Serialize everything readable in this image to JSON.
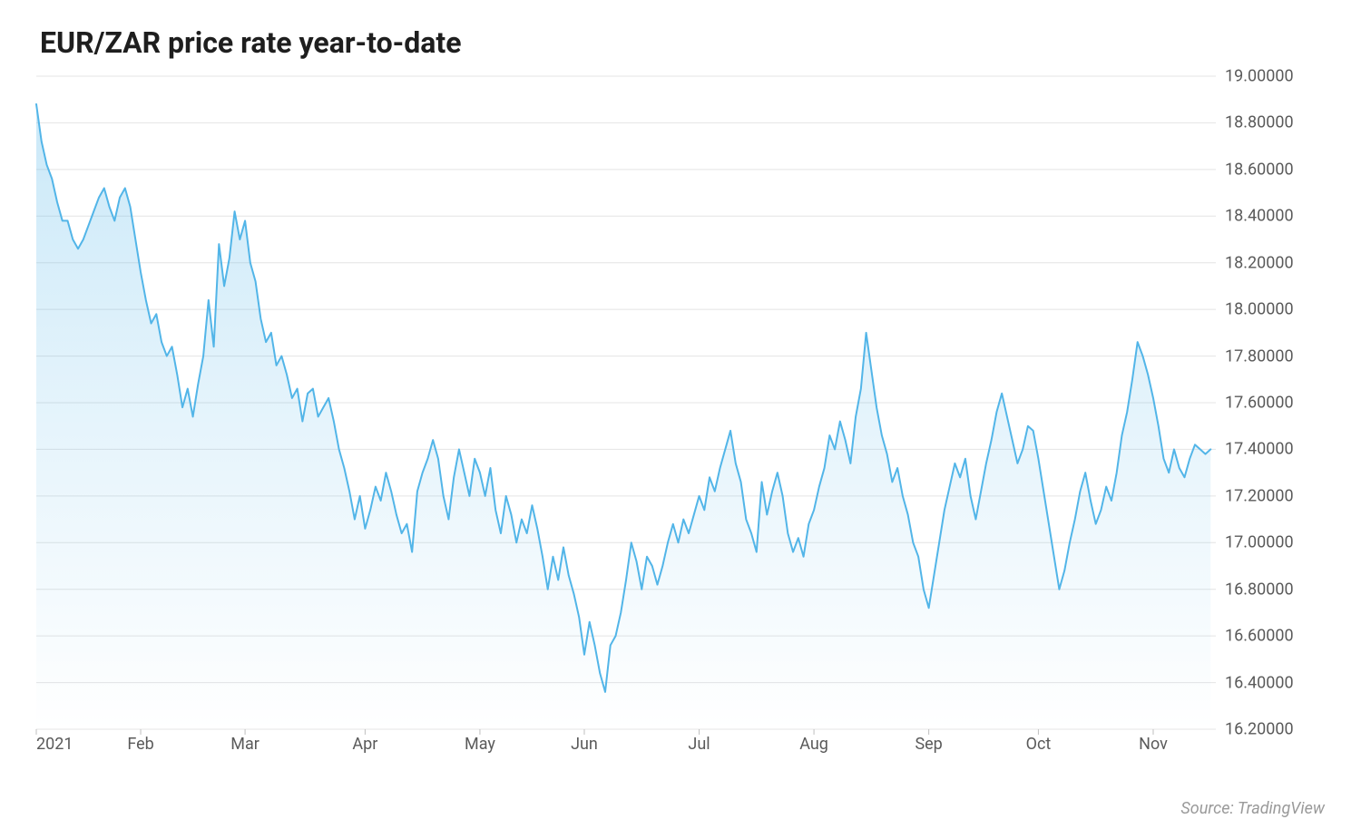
{
  "chart": {
    "type": "area-line",
    "title": "EUR/ZAR price rate year-to-date",
    "title_fontsize": 32,
    "title_color": "#1e1e1e",
    "background_color": "#ffffff",
    "grid_color": "#e4e4e4",
    "line_color": "#52b5e8",
    "line_width": 2,
    "area_gradient_top": "rgba(82,181,232,0.30)",
    "area_gradient_bottom": "rgba(82,181,232,0.0)",
    "axis_label_color": "#5a5a5a",
    "axis_label_fontsize": 18,
    "tick_color": "#bfbfbf",
    "ylim": [
      16.2,
      19.0
    ],
    "ytick_step": 0.2,
    "y_ticks": [
      19.0,
      18.8,
      18.6,
      18.4,
      18.2,
      18.0,
      17.8,
      17.6,
      17.4,
      17.2,
      17.0,
      16.8,
      16.6,
      16.4,
      16.2
    ],
    "y_tick_labels": [
      "19.00000",
      "18.80000",
      "18.60000",
      "18.40000",
      "18.20000",
      "18.00000",
      "17.80000",
      "17.60000",
      "17.40000",
      "17.20000",
      "17.00000",
      "16.80000",
      "16.60000",
      "16.40000",
      "16.20000"
    ],
    "xlim": [
      0,
      226
    ],
    "x_ticks": [
      0,
      20,
      40,
      63,
      85,
      105,
      127,
      149,
      171,
      192,
      214
    ],
    "x_tick_labels": [
      "2021",
      "Feb",
      "Mar",
      "Apr",
      "May",
      "Jun",
      "Jul",
      "Aug",
      "Sep",
      "Oct",
      "Nov"
    ],
    "source_text": "Source: TradingView",
    "source_color": "#9a9a9a",
    "series": {
      "name": "EUR/ZAR",
      "values": [
        18.88,
        18.72,
        18.62,
        18.56,
        18.46,
        18.38,
        18.38,
        18.3,
        18.26,
        18.3,
        18.36,
        18.42,
        18.48,
        18.52,
        18.44,
        18.38,
        18.48,
        18.52,
        18.44,
        18.3,
        18.16,
        18.04,
        17.94,
        17.98,
        17.86,
        17.8,
        17.84,
        17.72,
        17.58,
        17.66,
        17.54,
        17.68,
        17.8,
        18.04,
        17.84,
        18.28,
        18.1,
        18.22,
        18.42,
        18.3,
        18.38,
        18.2,
        18.12,
        17.96,
        17.86,
        17.9,
        17.76,
        17.8,
        17.72,
        17.62,
        17.66,
        17.52,
        17.64,
        17.66,
        17.54,
        17.58,
        17.62,
        17.52,
        17.4,
        17.32,
        17.22,
        17.1,
        17.2,
        17.06,
        17.14,
        17.24,
        17.18,
        17.3,
        17.22,
        17.12,
        17.04,
        17.08,
        16.96,
        17.22,
        17.3,
        17.36,
        17.44,
        17.36,
        17.2,
        17.1,
        17.28,
        17.4,
        17.3,
        17.2,
        17.36,
        17.3,
        17.2,
        17.32,
        17.14,
        17.04,
        17.2,
        17.12,
        17.0,
        17.1,
        17.04,
        17.16,
        17.06,
        16.94,
        16.8,
        16.94,
        16.84,
        16.98,
        16.86,
        16.78,
        16.68,
        16.52,
        16.66,
        16.56,
        16.44,
        16.36,
        16.56,
        16.6,
        16.7,
        16.84,
        17.0,
        16.92,
        16.8,
        16.94,
        16.9,
        16.82,
        16.9,
        17.0,
        17.08,
        17.0,
        17.1,
        17.04,
        17.12,
        17.2,
        17.14,
        17.28,
        17.22,
        17.32,
        17.4,
        17.48,
        17.34,
        17.26,
        17.1,
        17.04,
        16.96,
        17.26,
        17.12,
        17.22,
        17.3,
        17.2,
        17.04,
        16.96,
        17.02,
        16.94,
        17.08,
        17.14,
        17.24,
        17.32,
        17.46,
        17.4,
        17.52,
        17.44,
        17.34,
        17.54,
        17.66,
        17.9,
        17.74,
        17.58,
        17.46,
        17.38,
        17.26,
        17.32,
        17.2,
        17.12,
        17.0,
        16.94,
        16.8,
        16.72,
        16.86,
        17.0,
        17.14,
        17.24,
        17.34,
        17.28,
        17.36,
        17.2,
        17.1,
        17.22,
        17.34,
        17.44,
        17.56,
        17.64,
        17.54,
        17.44,
        17.34,
        17.4,
        17.5,
        17.48,
        17.36,
        17.22,
        17.08,
        16.94,
        16.8,
        16.88,
        17.0,
        17.1,
        17.22,
        17.3,
        17.18,
        17.08,
        17.14,
        17.24,
        17.18,
        17.3,
        17.46,
        17.56,
        17.7,
        17.86,
        17.8,
        17.72,
        17.62,
        17.5,
        17.36,
        17.3,
        17.4,
        17.32,
        17.28,
        17.36,
        17.42,
        17.4,
        17.38,
        17.4
      ]
    }
  }
}
